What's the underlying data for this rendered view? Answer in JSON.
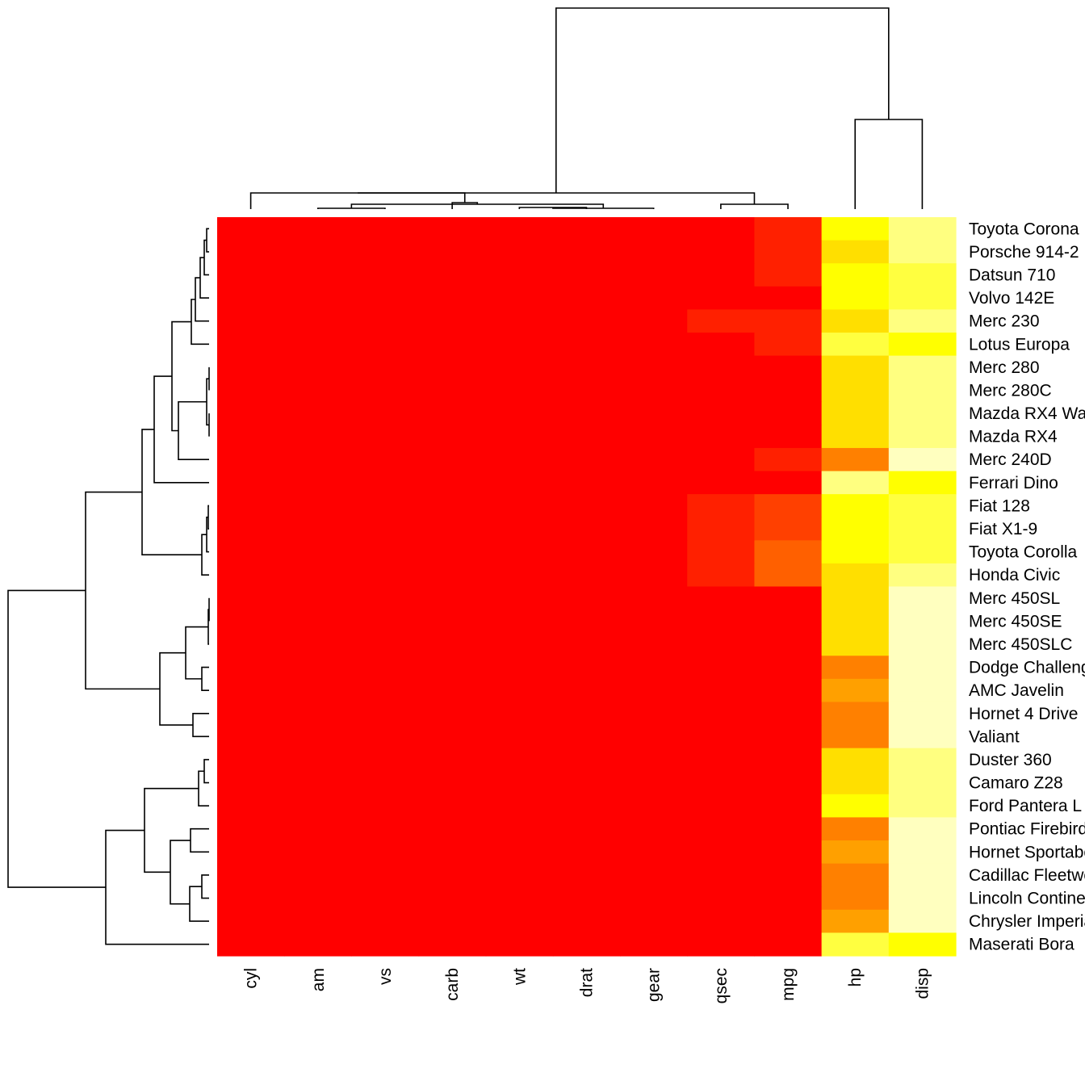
{
  "chart_data": {
    "type": "heatmap",
    "title": "",
    "xlabel": "",
    "ylabel": "",
    "columns": [
      "cyl",
      "am",
      "vs",
      "carb",
      "wt",
      "drat",
      "gear",
      "qsec",
      "mpg",
      "hp",
      "disp"
    ],
    "rows": [
      "Toyota Corona",
      "Porsche 914-2",
      "Datsun 710",
      "Volvo 142E",
      "Merc 230",
      "Lotus Europa",
      "Merc 280",
      "Merc 280C",
      "Mazda RX4 Wag",
      "Mazda RX4",
      "Merc 240D",
      "Ferrari Dino",
      "Fiat 128",
      "Fiat X1-9",
      "Toyota Corolla",
      "Honda Civic",
      "Merc 450SL",
      "Merc 450SE",
      "Merc 450SLC",
      "Dodge Challenger",
      "AMC Javelin",
      "Hornet 4 Drive",
      "Valiant",
      "Duster 360",
      "Camaro Z28",
      "Ford Pantera L",
      "Pontiac Firebird",
      "Hornet Sportabout",
      "Cadillac Fleetwood",
      "Lincoln Continental",
      "Chrysler Imperial",
      "Maserati Bora"
    ],
    "color_scale": {
      "name": "heat",
      "colors": [
        "#FF0000",
        "#FF2000",
        "#FF4000",
        "#FF6000",
        "#FF8000",
        "#FFA000",
        "#FFBF00",
        "#FFDF00",
        "#FFFF00",
        "#FFFF40",
        "#FFFF80",
        "#FFFFBF"
      ]
    },
    "values": [
      [
        0,
        0,
        0,
        0,
        0,
        0,
        0,
        0,
        1,
        8,
        10
      ],
      [
        0,
        0,
        0,
        0,
        0,
        0,
        0,
        0,
        1,
        7,
        10
      ],
      [
        0,
        0,
        0,
        0,
        0,
        0,
        0,
        0,
        1,
        8,
        9
      ],
      [
        0,
        0,
        0,
        0,
        0,
        0,
        0,
        0,
        0,
        8,
        9
      ],
      [
        0,
        0,
        0,
        0,
        0,
        0,
        0,
        1,
        1,
        7,
        10
      ],
      [
        0,
        0,
        0,
        0,
        0,
        0,
        0,
        0,
        1,
        9,
        8
      ],
      [
        0,
        0,
        0,
        0,
        0,
        0,
        0,
        0,
        0,
        7,
        10
      ],
      [
        0,
        0,
        0,
        0,
        0,
        0,
        0,
        0,
        0,
        7,
        10
      ],
      [
        0,
        0,
        0,
        0,
        0,
        0,
        0,
        0,
        0,
        7,
        10
      ],
      [
        0,
        0,
        0,
        0,
        0,
        0,
        0,
        0,
        0,
        7,
        10
      ],
      [
        0,
        0,
        0,
        0,
        0,
        0,
        0,
        0,
        1,
        4,
        11
      ],
      [
        0,
        0,
        0,
        0,
        0,
        0,
        0,
        0,
        0,
        10,
        8
      ],
      [
        0,
        0,
        0,
        0,
        0,
        0,
        0,
        1,
        2,
        8,
        9
      ],
      [
        0,
        0,
        0,
        0,
        0,
        0,
        0,
        1,
        2,
        8,
        9
      ],
      [
        0,
        0,
        0,
        0,
        0,
        0,
        0,
        1,
        3,
        8,
        9
      ],
      [
        0,
        0,
        0,
        0,
        0,
        0,
        0,
        1,
        3,
        7,
        10
      ],
      [
        0,
        0,
        0,
        0,
        0,
        0,
        0,
        0,
        0,
        7,
        11
      ],
      [
        0,
        0,
        0,
        0,
        0,
        0,
        0,
        0,
        0,
        7,
        11
      ],
      [
        0,
        0,
        0,
        0,
        0,
        0,
        0,
        0,
        0,
        7,
        11
      ],
      [
        0,
        0,
        0,
        0,
        0,
        0,
        0,
        0,
        0,
        4,
        11
      ],
      [
        0,
        0,
        0,
        0,
        0,
        0,
        0,
        0,
        0,
        5,
        11
      ],
      [
        0,
        0,
        0,
        0,
        0,
        0,
        0,
        0,
        0,
        4,
        11
      ],
      [
        0,
        0,
        0,
        0,
        0,
        0,
        0,
        0,
        0,
        4,
        11
      ],
      [
        0,
        0,
        0,
        0,
        0,
        0,
        0,
        0,
        0,
        7,
        10
      ],
      [
        0,
        0,
        0,
        0,
        0,
        0,
        0,
        0,
        0,
        7,
        10
      ],
      [
        0,
        0,
        0,
        0,
        0,
        0,
        0,
        0,
        0,
        8,
        10
      ],
      [
        0,
        0,
        0,
        0,
        0,
        0,
        0,
        0,
        0,
        4,
        11
      ],
      [
        0,
        0,
        0,
        0,
        0,
        0,
        0,
        0,
        0,
        5,
        11
      ],
      [
        0,
        0,
        0,
        0,
        0,
        0,
        0,
        0,
        0,
        4,
        11
      ],
      [
        0,
        0,
        0,
        0,
        0,
        0,
        0,
        0,
        0,
        4,
        11
      ],
      [
        0,
        0,
        0,
        0,
        0,
        0,
        0,
        0,
        0,
        5,
        11
      ],
      [
        0,
        0,
        0,
        0,
        0,
        0,
        0,
        0,
        0,
        9,
        8
      ]
    ],
    "column_dendrogram": {
      "merge_heights": [
        2,
        3,
        2,
        2,
        5,
        4,
        12,
        27,
        30,
        40,
        100
      ],
      "note": "hierarchical clustering of columns; hp and disp form a separate tall cluster"
    },
    "row_dendrogram": {
      "note": "hierarchical clustering of cars (rows) drawn on the left"
    },
    "legend": "none"
  }
}
